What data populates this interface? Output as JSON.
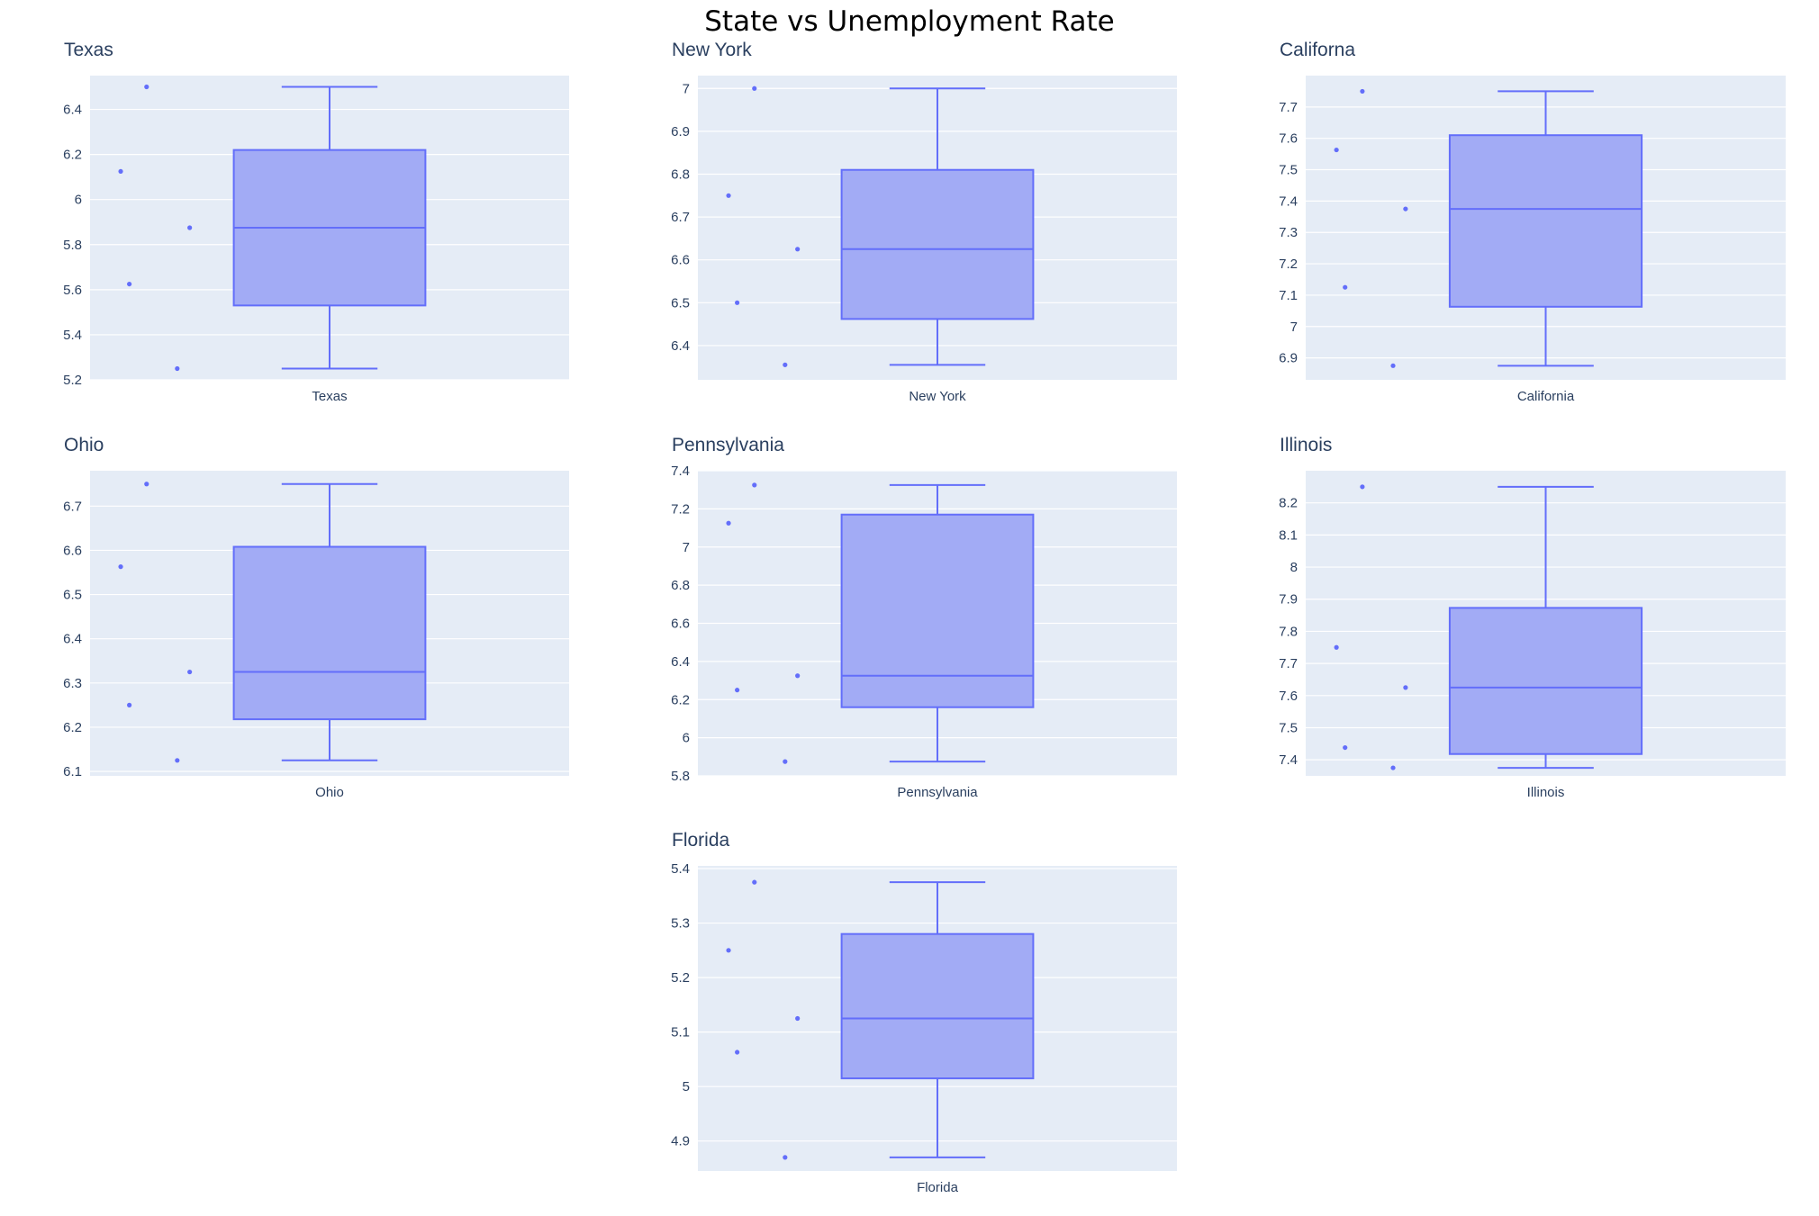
{
  "chart_data": {
    "type": "box",
    "title": "State vs Unemployment Rate",
    "colors": {
      "plot_bg": "#e5ecf6",
      "grid": "#ffffff",
      "box_fill": "#a2abf5",
      "box_line": "#636efa",
      "text": "#2a3f5f"
    },
    "subplots": [
      {
        "title": "Texas",
        "category": "Texas",
        "ylim": [
          5.2,
          6.55
        ],
        "ticks": [
          5.2,
          5.4,
          5.6,
          5.8,
          6,
          6.2,
          6.4
        ],
        "tick_labels": [
          "5.2",
          "5.4",
          "5.6",
          "5.8",
          "6",
          "6.2",
          "6.4"
        ],
        "points": [
          6.5,
          6.125,
          5.625,
          5.875,
          5.25
        ],
        "box": {
          "lowerfence": 5.25,
          "q1": 5.53,
          "median": 5.875,
          "q3": 6.22,
          "upperfence": 6.5
        }
      },
      {
        "title": "New York",
        "category": "New York",
        "ylim": [
          6.32,
          7.03
        ],
        "ticks": [
          6.4,
          6.5,
          6.6,
          6.7,
          6.8,
          6.9,
          7
        ],
        "tick_labels": [
          "6.4",
          "6.5",
          "6.6",
          "6.7",
          "6.8",
          "6.9",
          "7"
        ],
        "points": [
          7.0,
          6.75,
          6.5,
          6.625,
          6.355
        ],
        "box": {
          "lowerfence": 6.355,
          "q1": 6.462,
          "median": 6.625,
          "q3": 6.81,
          "upperfence": 7.0
        }
      },
      {
        "title": "Californa",
        "category": "California",
        "ylim": [
          6.83,
          7.8
        ],
        "ticks": [
          6.9,
          7,
          7.1,
          7.2,
          7.3,
          7.4,
          7.5,
          7.6,
          7.7
        ],
        "tick_labels": [
          "6.9",
          "7",
          "7.1",
          "7.2",
          "7.3",
          "7.4",
          "7.5",
          "7.6",
          "7.7"
        ],
        "points": [
          7.75,
          7.563,
          7.125,
          7.375,
          6.875
        ],
        "box": {
          "lowerfence": 6.875,
          "q1": 7.063,
          "median": 7.375,
          "q3": 7.61,
          "upperfence": 7.75
        }
      },
      {
        "title": "Ohio",
        "category": "Ohio",
        "ylim": [
          6.09,
          6.78
        ],
        "ticks": [
          6.1,
          6.2,
          6.3,
          6.4,
          6.5,
          6.6,
          6.7
        ],
        "tick_labels": [
          "6.1",
          "6.2",
          "6.3",
          "6.4",
          "6.5",
          "6.6",
          "6.7"
        ],
        "points": [
          6.75,
          6.563,
          6.25,
          6.325,
          6.125
        ],
        "box": {
          "lowerfence": 6.125,
          "q1": 6.218,
          "median": 6.325,
          "q3": 6.608,
          "upperfence": 6.75
        }
      },
      {
        "title": "Pennsylvania",
        "category": "Pennsylvania",
        "ylim": [
          5.8,
          7.4
        ],
        "ticks": [
          5.8,
          6,
          6.2,
          6.4,
          6.6,
          6.8,
          7,
          7.2,
          7.4
        ],
        "tick_labels": [
          "5.8",
          "6",
          "6.2",
          "6.4",
          "6.6",
          "6.8",
          "7",
          "7.2",
          "7.4"
        ],
        "points": [
          7.325,
          7.125,
          6.25,
          6.325,
          5.875
        ],
        "box": {
          "lowerfence": 5.875,
          "q1": 6.16,
          "median": 6.325,
          "q3": 7.17,
          "upperfence": 7.325
        }
      },
      {
        "title": "Illinois",
        "category": "Illinois",
        "ylim": [
          7.35,
          8.3
        ],
        "ticks": [
          7.4,
          7.5,
          7.6,
          7.7,
          7.8,
          7.9,
          8,
          8.1,
          8.2
        ],
        "tick_labels": [
          "7.4",
          "7.5",
          "7.6",
          "7.7",
          "7.8",
          "7.9",
          "8",
          "8.1",
          "8.2"
        ],
        "points": [
          8.25,
          7.75,
          7.438,
          7.625,
          7.375
        ],
        "box": {
          "lowerfence": 7.375,
          "q1": 7.418,
          "median": 7.625,
          "q3": 7.873,
          "upperfence": 8.25
        }
      },
      {
        "title": "Florida",
        "category": "Florida",
        "ylim": [
          4.845,
          5.405
        ],
        "ticks": [
          4.9,
          5,
          5.1,
          5.2,
          5.3,
          5.4
        ],
        "tick_labels": [
          "4.9",
          "5",
          "5.1",
          "5.2",
          "5.3",
          "5.4"
        ],
        "points": [
          5.375,
          5.25,
          5.063,
          5.125,
          4.87
        ],
        "box": {
          "lowerfence": 4.87,
          "q1": 5.015,
          "median": 5.125,
          "q3": 5.28,
          "upperfence": 5.375
        }
      }
    ]
  }
}
